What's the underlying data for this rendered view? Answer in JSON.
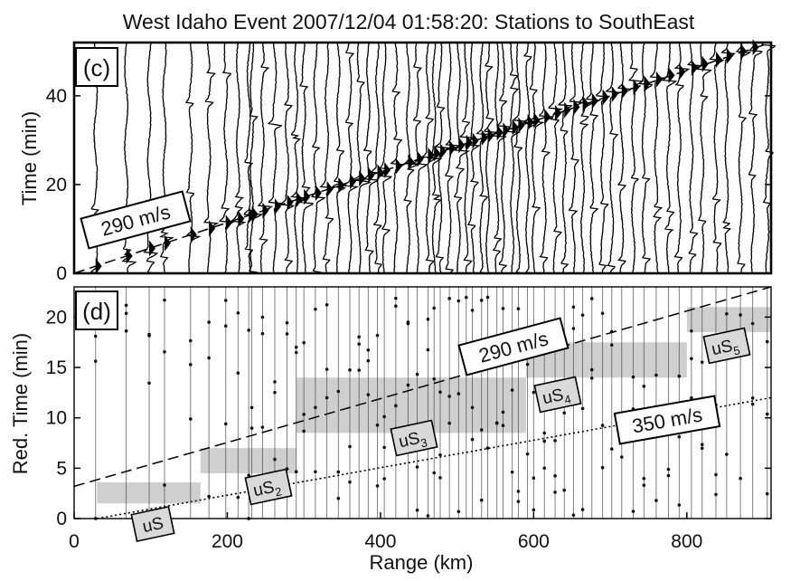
{
  "figure_title": "West Idaho Event 2007/12/04 01:58:20: Stations to SouthEast",
  "colors": {
    "trace": "#000000",
    "band": "#cfcfcf",
    "frame": "#000000"
  },
  "chart_data": [
    {
      "panel": "(c)",
      "type": "line",
      "title": "",
      "ylabel": "Time (min)",
      "xlabel": "",
      "xlim": [
        0,
        910
      ],
      "ylim": [
        0,
        52
      ],
      "yticks": [
        0,
        20,
        40
      ],
      "series": [
        {
          "name": "",
          "style": "dashed",
          "label": "290 m/s",
          "x": [
            0,
            910
          ],
          "y": [
            0,
            52.3
          ]
        }
      ],
      "station_ranges_km": [
        28,
        68,
        98,
        118,
        152,
        176,
        198,
        214,
        228,
        232,
        246,
        262,
        278,
        290,
        300,
        315,
        330,
        345,
        360,
        372,
        384,
        396,
        405,
        420,
        436,
        448,
        462,
        470,
        478,
        490,
        502,
        512,
        520,
        532,
        540,
        552,
        560,
        572,
        580,
        592,
        600,
        614,
        628,
        640,
        652,
        664,
        676,
        690,
        702,
        715,
        730,
        744,
        760,
        776,
        790,
        806,
        820,
        838,
        852,
        870,
        886,
        905
      ]
    },
    {
      "panel": "(d)",
      "type": "line",
      "title": "",
      "ylabel": "Red. Time (min)",
      "xlabel": "Range (km)",
      "xlim": [
        0,
        910
      ],
      "ylim": [
        0,
        23
      ],
      "xticks": [
        0,
        200,
        400,
        600,
        800
      ],
      "yticks": [
        0,
        5,
        10,
        15,
        20
      ],
      "series": [
        {
          "name": "",
          "style": "dashed",
          "label": "290 m/s",
          "x": [
            0,
            910
          ],
          "y": [
            3.2,
            24.3
          ]
        },
        {
          "name": "",
          "style": "dotted",
          "label": "350 m/s",
          "x": [
            30,
            910
          ],
          "y": [
            0,
            12
          ]
        }
      ],
      "phase_bands": [
        {
          "label": "uS",
          "x": [
            30,
            165
          ],
          "y": [
            1.5,
            3.6
          ]
        },
        {
          "label": "uS2",
          "x": [
            165,
            290
          ],
          "y": [
            4.5,
            7.0
          ]
        },
        {
          "label": "uS3",
          "x": [
            290,
            590
          ],
          "y": [
            8.5,
            14.0
          ]
        },
        {
          "label": "uS4",
          "x": [
            590,
            800
          ],
          "y": [
            14.0,
            17.5
          ]
        },
        {
          "label": "uS5",
          "x": [
            800,
            910
          ],
          "y": [
            18.5,
            21.0
          ]
        }
      ],
      "annotations": [
        {
          "text": "uS",
          "sub": ""
        },
        {
          "text": "uS",
          "sub": "2"
        },
        {
          "text": "uS",
          "sub": "3"
        },
        {
          "text": "uS",
          "sub": "4"
        },
        {
          "text": "uS",
          "sub": "5"
        },
        {
          "text": "290 m/s",
          "sub": ""
        },
        {
          "text": "350 m/s",
          "sub": ""
        }
      ]
    }
  ]
}
